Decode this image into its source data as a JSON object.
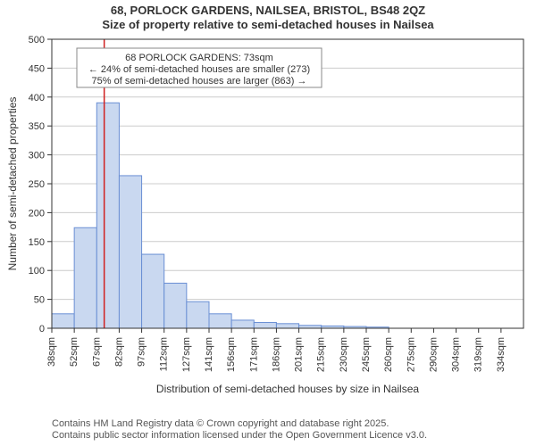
{
  "title_line1": "68, PORLOCK GARDENS, NAILSEA, BRISTOL, BS48 2QZ",
  "title_line2": "Size of property relative to semi-detached houses in Nailsea",
  "ylabel": "Number of semi-detached properties",
  "xlabel": "Distribution of semi-detached houses by size in Nailsea",
  "footer_line1": "Contains HM Land Registry data © Crown copyright and database right 2025.",
  "footer_line2": "Contains public sector information licensed under the Open Government Licence v3.0.",
  "chart": {
    "type": "histogram",
    "plot_bg": "#ffffff",
    "axis_color": "#333333",
    "grid_color": "#cccccc",
    "bar_fill": "#c9d8f0",
    "bar_stroke": "#6a8fd4",
    "marker_line_color": "#d02020",
    "ylim": [
      0,
      500
    ],
    "ytick_step": 50,
    "x_bin_width": 15,
    "x_start": 38,
    "x_labels": [
      "38sqm",
      "52sqm",
      "67sqm",
      "82sqm",
      "97sqm",
      "112sqm",
      "127sqm",
      "141sqm",
      "156sqm",
      "171sqm",
      "186sqm",
      "201sqm",
      "215sqm",
      "230sqm",
      "245sqm",
      "260sqm",
      "275sqm",
      "290sqm",
      "304sqm",
      "319sqm",
      "334sqm"
    ],
    "values": [
      25,
      174,
      390,
      264,
      128,
      78,
      46,
      25,
      14,
      10,
      8,
      5,
      4,
      3,
      2,
      0,
      0,
      0,
      0,
      0,
      0
    ],
    "marker_x_sqm": 73,
    "label_fontsize": 11,
    "title_fontsize": 13
  },
  "annotation": {
    "line1": "68 PORLOCK GARDENS: 73sqm",
    "line2": "← 24% of semi-detached houses are smaller (273)",
    "line3": "75% of semi-detached houses are larger (863) →"
  }
}
